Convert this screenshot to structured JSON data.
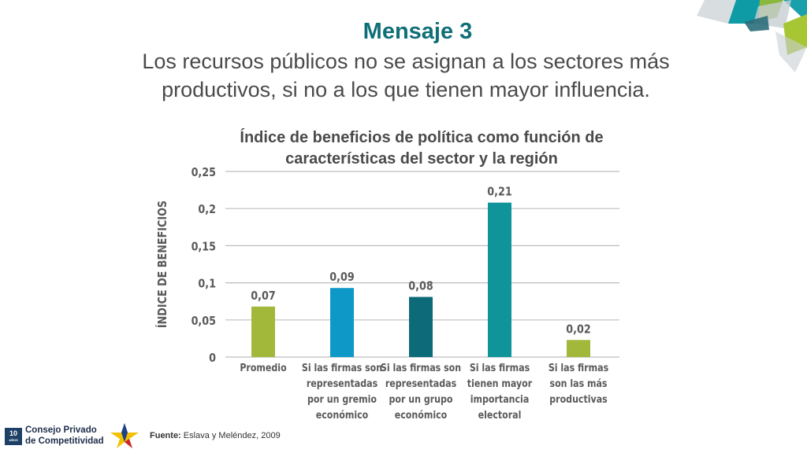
{
  "slide": {
    "title": "Mensaje 3",
    "subtitle": "Los recursos públicos no se asignan a los sectores más productivos, si no a los que tienen mayor influencia."
  },
  "footer": {
    "source_label": "Fuente:",
    "source_text": "Eslava y Meléndez, 2009",
    "logo_line1": "Consejo Privado",
    "logo_line2": "de Competitividad",
    "logo_badge": "10",
    "logo_badge_sub": "AÑOS"
  },
  "colors": {
    "title": "#0f6f77",
    "decoration": [
      "#8ab83c",
      "#0e9ba6",
      "#2b6e7a",
      "#c8ced3",
      "#a7c634"
    ]
  },
  "chart_data": {
    "type": "bar",
    "title": "Índice de beneficios de política como función de características del sector y la región",
    "ylabel": "ÍNDICE DE BENEFICIOS",
    "xlabel": "",
    "ylim": [
      0,
      0.25
    ],
    "yticks": [
      0,
      0.05,
      0.1,
      0.15,
      0.2,
      0.25
    ],
    "ytick_labels": [
      "0",
      "0,05",
      "0,1",
      "0,15",
      "0,2",
      "0,25"
    ],
    "grid": true,
    "categories": [
      [
        "Promedio"
      ],
      [
        "Si las firmas son",
        "representadas",
        "por un gremio",
        "económico"
      ],
      [
        "Si las firmas son",
        "representadas",
        "por un grupo",
        "económico"
      ],
      [
        "Si las firmas",
        "tienen mayor",
        "importancia",
        "electoral"
      ],
      [
        "Si las firmas",
        "son las más",
        "productivas"
      ]
    ],
    "values": [
      0.068,
      0.093,
      0.081,
      0.208,
      0.023
    ],
    "data_labels": [
      "0,07",
      "0,09",
      "0,08",
      "0,21",
      "0,02"
    ],
    "bar_colors": [
      "#a2b83a",
      "#0d98c8",
      "#0d6a78",
      "#0f9499",
      "#a2b83a"
    ]
  }
}
